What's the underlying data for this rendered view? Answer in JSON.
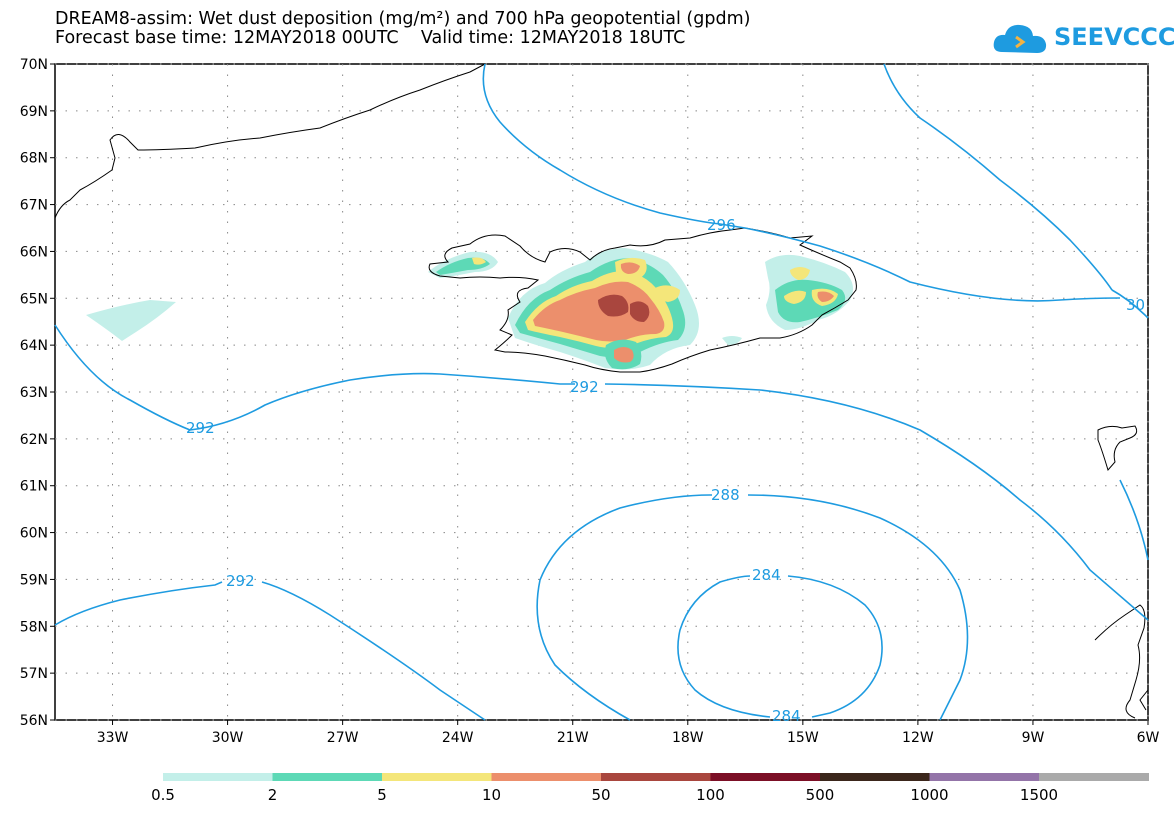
{
  "header": {
    "title_line1": "DREAM8-assim: Wet dust deposition (mg/m²) and 700 hPa geopotential (gpdm)",
    "title_line2": "Forecast base time: 12MAY2018 00UTC    Valid time: 12MAY2018 18UTC"
  },
  "logo": {
    "text": "SEEVCCC",
    "icon": "cloud-icon",
    "color": "#1e9be0"
  },
  "axes": {
    "lat_labels": [
      "70N",
      "69N",
      "68N",
      "67N",
      "66N",
      "65N",
      "64N",
      "63N",
      "62N",
      "61N",
      "60N",
      "59N",
      "58N",
      "57N",
      "56N"
    ],
    "lon_labels": [
      "33W",
      "30W",
      "27W",
      "24W",
      "21W",
      "18W",
      "15W",
      "12W",
      "9W",
      "6W"
    ],
    "lat_values": [
      70,
      69,
      68,
      67,
      66,
      65,
      64,
      63,
      62,
      61,
      60,
      59,
      58,
      57,
      56
    ],
    "lon_values": [
      -33,
      -30,
      -27,
      -24,
      -21,
      -18,
      -15,
      -12,
      -9,
      -6
    ],
    "lon_range": [
      -34.5,
      -6
    ],
    "lat_range": [
      56,
      70
    ],
    "grid": "dotted"
  },
  "contours": {
    "color": "#1e9be0",
    "labels": [
      "296",
      "30",
      "292",
      "292",
      "292",
      "288",
      "284",
      "284"
    ]
  },
  "legend": {
    "colors": [
      "#c3efe9",
      "#5dd9b6",
      "#f4e67a",
      "#ec8f6c",
      "#a9463e",
      "#7c0f26",
      "#3b261b",
      "#9374a8",
      "#aaaaaa"
    ],
    "labels": [
      "0.5",
      "2",
      "5",
      "10",
      "50",
      "100",
      "500",
      "1000",
      "1500"
    ]
  },
  "deposition_colors": {
    "l1": "#c3efe9",
    "l2": "#5dd9b6",
    "l3": "#f4e67a",
    "l4": "#ec8f6c",
    "l5": "#a9463e"
  }
}
